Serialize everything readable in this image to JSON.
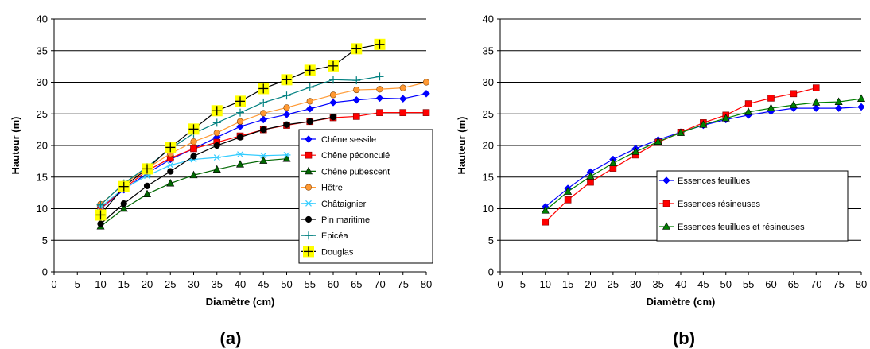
{
  "chart_data": [
    {
      "type": "line",
      "panel_label": "(a)",
      "xlabel": "Diamètre (cm)",
      "ylabel": "Hauteur (m)",
      "xlim": [
        0,
        80
      ],
      "ylim": [
        0,
        40
      ],
      "xticks": [
        0,
        5,
        10,
        15,
        20,
        25,
        30,
        35,
        40,
        45,
        50,
        55,
        60,
        65,
        70,
        75,
        80
      ],
      "yticks": [
        0,
        5,
        10,
        15,
        20,
        25,
        30,
        35,
        40
      ],
      "grid": "horizontal",
      "legend_position": "right",
      "series": [
        {
          "name": "Chêne sessile",
          "color": "#0000ff",
          "marker": "diamond",
          "x": [
            10,
            15,
            20,
            25,
            30,
            35,
            40,
            45,
            50,
            55,
            60,
            65,
            70,
            75,
            80
          ],
          "y": [
            10.0,
            13.0,
            15.6,
            17.8,
            19.5,
            21.3,
            23.0,
            24.1,
            24.9,
            25.8,
            26.8,
            27.2,
            27.5,
            27.4,
            28.2
          ]
        },
        {
          "name": "Chêne pédonculé",
          "color": "#ff0000",
          "marker": "square",
          "x": [
            10,
            15,
            20,
            25,
            30,
            35,
            40,
            45,
            50,
            55,
            60,
            65,
            70,
            75,
            80
          ],
          "y": [
            10.0,
            13.2,
            16.0,
            18.0,
            19.5,
            20.5,
            21.5,
            22.5,
            23.2,
            23.8,
            24.4,
            24.6,
            25.2,
            25.2,
            25.2
          ]
        },
        {
          "name": "Chêne pubescent",
          "color": "#006600",
          "marker": "triangle",
          "x": [
            10,
            15,
            20,
            25,
            30,
            35,
            40,
            45,
            50
          ],
          "y": [
            7.2,
            10.0,
            12.3,
            14.0,
            15.3,
            16.2,
            17.0,
            17.6,
            17.9
          ]
        },
        {
          "name": "Hêtre",
          "color": "#ff9933",
          "marker": "circle",
          "x": [
            10,
            15,
            20,
            25,
            30,
            35,
            40,
            45,
            50,
            55,
            60,
            65,
            70,
            75,
            80
          ],
          "y": [
            10.7,
            13.9,
            16.4,
            18.7,
            20.6,
            22.0,
            23.8,
            25.1,
            26.0,
            27.0,
            28.0,
            28.8,
            28.9,
            29.1,
            30.0
          ]
        },
        {
          "name": "Châtaignier",
          "color": "#33ccff",
          "marker": "asterisk",
          "x": [
            10,
            15,
            20,
            25,
            30,
            35,
            40,
            45,
            50
          ],
          "y": [
            10.3,
            13.2,
            15.2,
            16.9,
            17.8,
            18.1,
            18.6,
            18.4,
            18.5
          ]
        },
        {
          "name": "Pin maritime",
          "color": "#000000",
          "marker": "circle",
          "x": [
            10,
            15,
            20,
            25,
            30,
            35,
            40,
            45,
            50,
            55,
            60
          ],
          "y": [
            7.6,
            10.8,
            13.6,
            15.9,
            18.3,
            20.0,
            21.3,
            22.5,
            23.3,
            23.8,
            24.5
          ]
        },
        {
          "name": "Epicéa",
          "color": "#008080",
          "marker": "plus",
          "x": [
            10,
            15,
            20,
            25,
            30,
            35,
            40,
            45,
            50,
            55,
            60,
            65,
            70
          ],
          "y": [
            10.6,
            14.0,
            16.6,
            19.5,
            21.9,
            23.6,
            25.2,
            26.8,
            27.9,
            29.2,
            30.4,
            30.3,
            30.9
          ]
        },
        {
          "name": "Douglas",
          "color": "#000000",
          "marker": "yellow-square-plus",
          "x": [
            10,
            15,
            20,
            25,
            30,
            35,
            40,
            45,
            50,
            55,
            60,
            65,
            70
          ],
          "y": [
            9.0,
            13.5,
            16.3,
            19.7,
            22.6,
            25.5,
            27.0,
            29.0,
            30.4,
            31.9,
            32.6,
            35.3,
            36.0
          ]
        }
      ]
    },
    {
      "type": "line",
      "panel_label": "(b)",
      "xlabel": "Diamètre (cm)",
      "ylabel": "Hauteur (m)",
      "xlim": [
        0,
        80
      ],
      "ylim": [
        0,
        40
      ],
      "xticks": [
        0,
        5,
        10,
        15,
        20,
        25,
        30,
        35,
        40,
        45,
        50,
        55,
        60,
        65,
        70,
        75,
        80
      ],
      "yticks": [
        0,
        5,
        10,
        15,
        20,
        25,
        30,
        35,
        40
      ],
      "grid": "horizontal",
      "legend_position": "center",
      "series": [
        {
          "name": "Essences feuillues",
          "color": "#0000ff",
          "marker": "diamond",
          "x": [
            10,
            15,
            20,
            25,
            30,
            35,
            40,
            45,
            50,
            55,
            60,
            65,
            70,
            75,
            80
          ],
          "y": [
            10.3,
            13.2,
            15.8,
            17.8,
            19.5,
            20.9,
            22.1,
            23.2,
            24.1,
            24.8,
            25.4,
            25.9,
            25.9,
            25.9,
            26.1
          ]
        },
        {
          "name": "Essences résineuses",
          "color": "#ff0000",
          "marker": "square",
          "x": [
            10,
            15,
            20,
            25,
            30,
            35,
            40,
            45,
            50,
            55,
            60,
            65,
            70
          ],
          "y": [
            7.9,
            11.4,
            14.2,
            16.4,
            18.5,
            20.5,
            22.1,
            23.6,
            24.8,
            26.6,
            27.5,
            28.2,
            29.1
          ]
        },
        {
          "name": "Essences feuillues et résineuses",
          "color": "#008000",
          "marker": "triangle",
          "x": [
            10,
            15,
            20,
            25,
            30,
            35,
            40,
            45,
            50,
            55,
            60,
            65,
            70,
            75,
            80
          ],
          "y": [
            9.7,
            12.7,
            15.1,
            17.2,
            19.0,
            20.6,
            22.0,
            23.3,
            24.3,
            25.3,
            25.9,
            26.4,
            26.8,
            26.9,
            27.4
          ]
        }
      ]
    }
  ]
}
